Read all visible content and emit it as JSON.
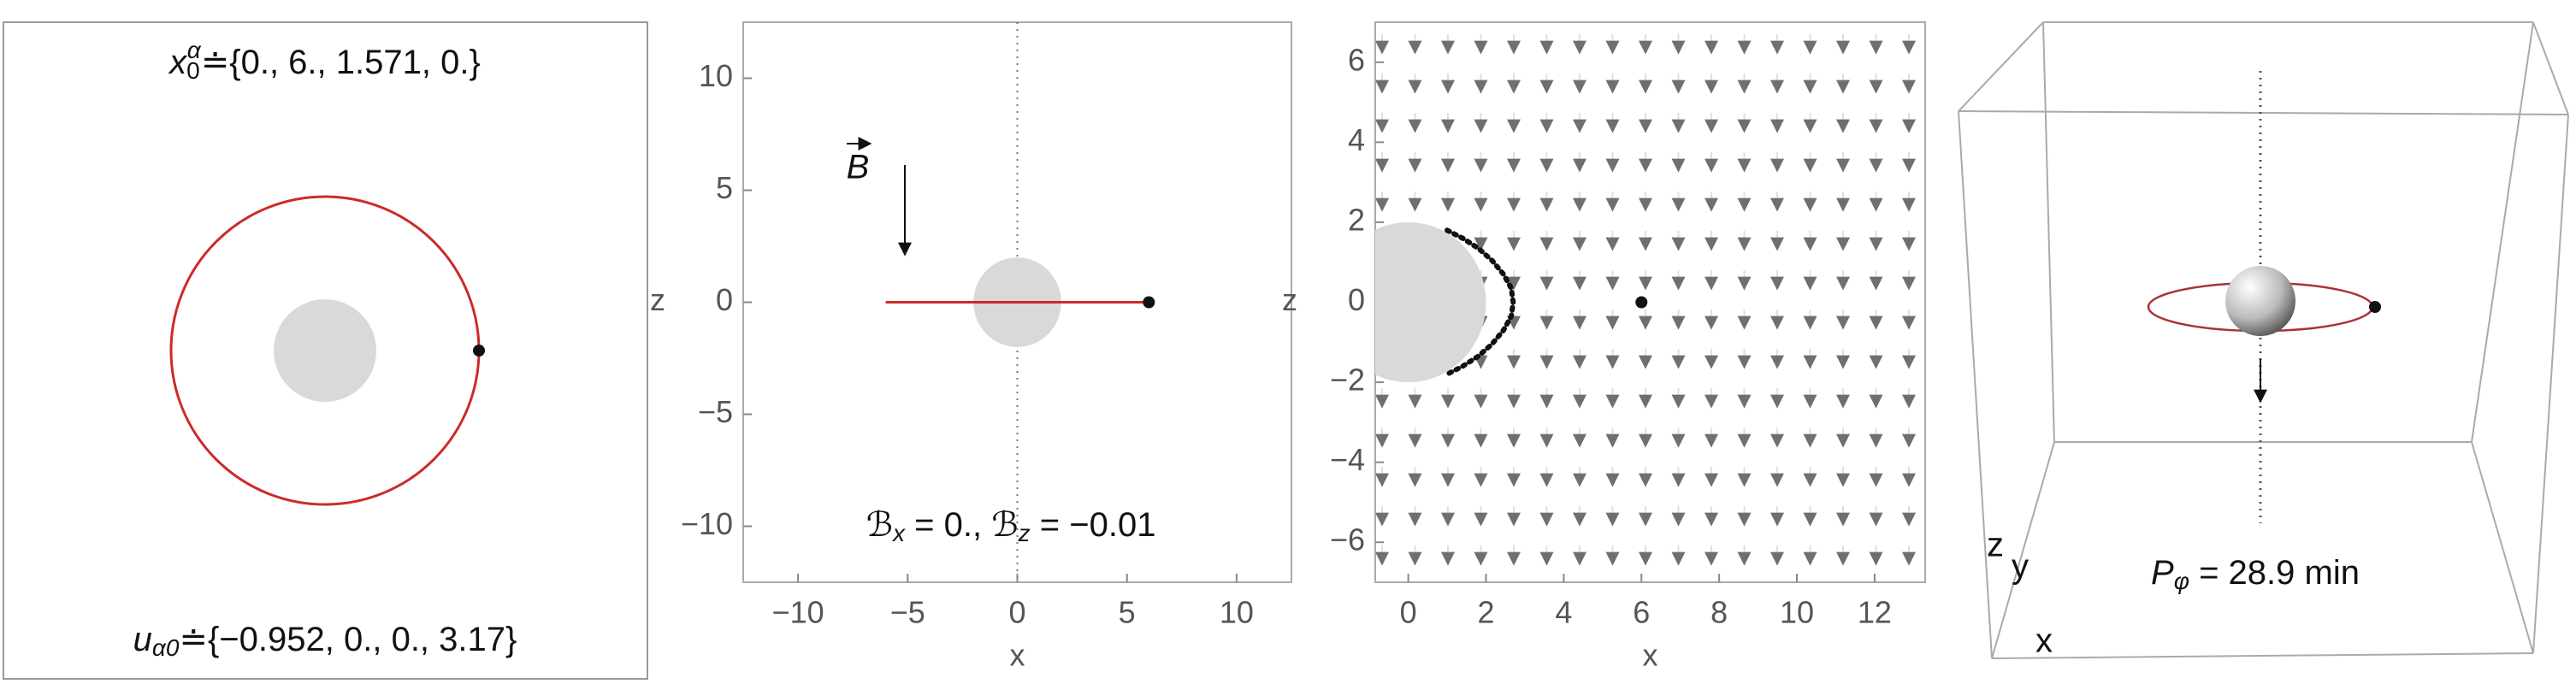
{
  "chart_data": [
    {
      "type": "orbit",
      "initial_position": {
        "base": "x",
        "sub": "0",
        "sup": "α",
        "rest": "≐{0., 6., 1.571, 0.}"
      },
      "initial_velocity": {
        "base": "u",
        "sub": "α0",
        "rest": "≐{−0.952, 0., 0., 3.17}"
      },
      "orbit_radius": 6,
      "body_radius": 2,
      "orbit_color": "#cc2a2a",
      "body_color": "#d9d9d9",
      "particle": {
        "x": 6,
        "y": 0
      }
    },
    {
      "type": "side",
      "xlabel": "x",
      "ylabel": "z",
      "xlim": [
        -12.5,
        12.5
      ],
      "ylim": [
        -12.5,
        12.5
      ],
      "xticks": [
        {
          "value": -10,
          "label": "−10"
        },
        {
          "value": -5,
          "label": "−5"
        },
        0,
        5,
        10
      ],
      "yticks": [
        {
          "value": -10,
          "label": "−10"
        },
        {
          "value": -5,
          "label": "−5"
        },
        0,
        5,
        10
      ],
      "field_symbol": "B",
      "field_text": {
        "base_x": "ℬ",
        "sub_x": "x",
        "mid": " = 0., ",
        "base_z": "ℬ",
        "sub_z": "z",
        "rest": " = −0.01"
      },
      "body_radius": 2,
      "body_color": "#d9d9d9",
      "orbit": {
        "x": [
          -6,
          6
        ],
        "y": [
          0,
          0
        ],
        "color": "#cc2a2a"
      },
      "particle": {
        "x": 6,
        "y": 0
      }
    },
    {
      "type": "field",
      "xlabel": "x",
      "ylabel": "z",
      "xlim": [
        -0.85,
        13.3
      ],
      "ylim": [
        -7,
        7
      ],
      "xticks": [
        0,
        2,
        4,
        6,
        8,
        10,
        12
      ],
      "yticks": [
        {
          "value": -6,
          "label": "−6"
        },
        {
          "value": -4,
          "label": "−4"
        },
        {
          "value": -2,
          "label": "−2"
        },
        0,
        2,
        4,
        6
      ],
      "body_radius": 2,
      "body_color": "#d9d9d9",
      "boundary": {
        "x": [
          1.0,
          1.4,
          1.8,
          2.15,
          2.45,
          2.65,
          2.7,
          2.65,
          2.45,
          2.15,
          1.8,
          1.4,
          1.0
        ],
        "y": [
          1.8,
          1.6,
          1.35,
          1.05,
          0.7,
          0.35,
          0,
          -0.35,
          -0.7,
          -1.05,
          -1.35,
          -1.6,
          -1.8
        ]
      },
      "particle": {
        "x": 6,
        "y": 0
      }
    },
    {
      "type": "orbit3d",
      "period": {
        "base": "P",
        "sub": "φ",
        "rest": " = 28.9 min"
      },
      "xlabel": "x",
      "ylabel": "y",
      "zlabel": "z"
    }
  ]
}
